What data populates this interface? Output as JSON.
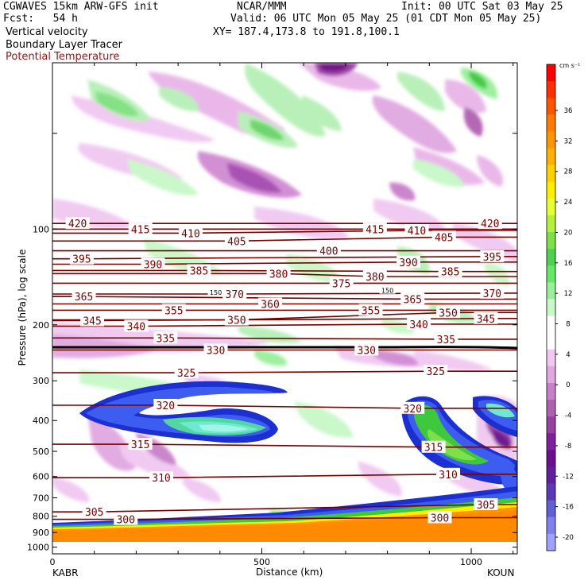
{
  "header": {
    "model": "CGWAVES 15km ARW-GFS init",
    "center": "NCAR/MMM",
    "init": "Init: 00 UTC Sat 03 May 25",
    "fcst": "Fcst:   54 h",
    "valid": "Valid: 06 UTC Mon 05 May 25 (01 CDT Mon 05 May 25)",
    "field1": "Vertical velocity",
    "xy": "XY= 187.4,173.8 to 191.8,100.1",
    "field2": "Boundary Layer Tracer",
    "field3": "Potential Temperature"
  },
  "colors": {
    "theta_line": "#7a0000",
    "field3_text": "#8b1a1a",
    "tracer": "#1030c0"
  },
  "chart_data": {
    "type": "heatmap",
    "xlabel": "Distance (km)",
    "ylabel": "Pressure (hPa), log scale",
    "xlim": [
      0,
      1110
    ],
    "ylim": [
      1050,
      30
    ],
    "y_scale": "log",
    "x_ticks": [
      0,
      500,
      1000
    ],
    "y_ticks": [
      100,
      200,
      300,
      400,
      500,
      600,
      700,
      800,
      900,
      1000
    ],
    "endpoints": {
      "left": "KABR",
      "right": "KOUN"
    },
    "colorbar": {
      "units": "cm s⁻¹",
      "ticks": [
        36,
        32,
        28,
        24,
        20,
        16,
        12,
        8,
        4,
        0,
        -4,
        -8,
        -12,
        -16,
        -20
      ],
      "colors": [
        "#ff0000",
        "#ff3000",
        "#ff5500",
        "#ff7a00",
        "#ff9600",
        "#ffb000",
        "#ffd000",
        "#ffee00",
        "#e6ff33",
        "#b4f03c",
        "#7de04a",
        "#50d050",
        "#66e866",
        "#9aef9a",
        "#c8f8c8",
        "#ffffff",
        "#ffffff",
        "#f0c8f0",
        "#e0a8e0",
        "#c880c8",
        "#b060b0",
        "#9840a0",
        "#80209a",
        "#6a1090",
        "#6020a0",
        "#5a3ab8",
        "#6060d8",
        "#8080f0",
        "#a0a0ff"
      ]
    },
    "theta_labels": [
      {
        "value": "420",
        "x": 60,
        "p": 96
      },
      {
        "value": "415",
        "x": 210,
        "p": 100
      },
      {
        "value": "410",
        "x": 330,
        "p": 103
      },
      {
        "value": "405",
        "x": 440,
        "p": 109
      },
      {
        "value": "400",
        "x": 660,
        "p": 117
      },
      {
        "value": "415",
        "x": 770,
        "p": 100
      },
      {
        "value": "410",
        "x": 870,
        "p": 101
      },
      {
        "value": "405",
        "x": 935,
        "p": 106
      },
      {
        "value": "420",
        "x": 1045,
        "p": 96
      },
      {
        "value": "395",
        "x": 70,
        "p": 124
      },
      {
        "value": "390",
        "x": 240,
        "p": 129
      },
      {
        "value": "385",
        "x": 350,
        "p": 135
      },
      {
        "value": "380",
        "x": 540,
        "p": 138
      },
      {
        "value": "375",
        "x": 690,
        "p": 148
      },
      {
        "value": "380",
        "x": 770,
        "p": 141
      },
      {
        "value": "390",
        "x": 850,
        "p": 127
      },
      {
        "value": "385",
        "x": 950,
        "p": 136
      },
      {
        "value": "395",
        "x": 1050,
        "p": 122
      },
      {
        "value": "365",
        "x": 75,
        "p": 163
      },
      {
        "value": "370",
        "x": 435,
        "p": 160
      },
      {
        "value": "360",
        "x": 520,
        "p": 172
      },
      {
        "value": "365",
        "x": 860,
        "p": 166
      },
      {
        "value": "370",
        "x": 1050,
        "p": 159
      },
      {
        "value": "355",
        "x": 290,
        "p": 180
      },
      {
        "value": "350",
        "x": 440,
        "p": 193
      },
      {
        "value": "355",
        "x": 760,
        "p": 180
      },
      {
        "value": "350",
        "x": 945,
        "p": 183
      },
      {
        "value": "345",
        "x": 1035,
        "p": 191
      },
      {
        "value": "345",
        "x": 95,
        "p": 194
      },
      {
        "value": "340",
        "x": 200,
        "p": 202
      },
      {
        "value": "340",
        "x": 875,
        "p": 199
      },
      {
        "value": "335",
        "x": 270,
        "p": 220
      },
      {
        "value": "335",
        "x": 940,
        "p": 222
      },
      {
        "value": "330",
        "x": 390,
        "p": 240
      },
      {
        "value": "330",
        "x": 750,
        "p": 240
      },
      {
        "value": "325",
        "x": 320,
        "p": 283
      },
      {
        "value": "325",
        "x": 915,
        "p": 280
      },
      {
        "value": "320",
        "x": 270,
        "p": 358
      },
      {
        "value": "320",
        "x": 860,
        "p": 366
      },
      {
        "value": "315",
        "x": 210,
        "p": 475
      },
      {
        "value": "315",
        "x": 910,
        "p": 485
      },
      {
        "value": "310",
        "x": 260,
        "p": 605
      },
      {
        "value": "310",
        "x": 945,
        "p": 590
      },
      {
        "value": "305",
        "x": 100,
        "p": 775
      },
      {
        "value": "305",
        "x": 1035,
        "p": 735
      },
      {
        "value": "300",
        "x": 175,
        "p": 818
      },
      {
        "value": "300",
        "x": 925,
        "p": 808
      }
    ],
    "tropopause_labels": [
      {
        "value": "150",
        "x": 390,
        "p": 158
      },
      {
        "value": "150",
        "x": 800,
        "p": 156
      }
    ]
  }
}
